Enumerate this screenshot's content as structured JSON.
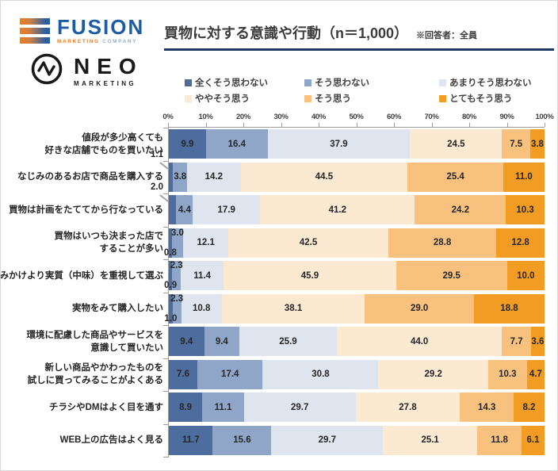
{
  "header": {
    "title": "買物に対する意識や行動（n＝1,000）",
    "note": "※回答者：全員"
  },
  "logos": {
    "fusion": {
      "name": "FUSION",
      "subtitle_1": "MARKETING",
      "subtitle_2": "COMPANY"
    },
    "neo": {
      "name": "NEO",
      "subtitle": "MARKETING"
    }
  },
  "colors": {
    "accent_navy": "#1F3864",
    "fusion_blue": "#1D5BA4",
    "fusion_orange": "#E87E25",
    "axis_gray": "#9C9C9C"
  },
  "chart_data": {
    "type": "bar",
    "stacked": true,
    "orientation": "horizontal",
    "title": "買物に対する意識や行動（n＝1,000）",
    "note": "※回答者：全員",
    "xlim": [
      0,
      100
    ],
    "grid": false,
    "legend_position": "top",
    "x_tick_labels": [
      "0%",
      "10%",
      "20%",
      "30%",
      "40%",
      "50%",
      "60%",
      "70%",
      "80%",
      "90%",
      "100%"
    ],
    "legend": [
      {
        "label": "全くそう思わない",
        "color": "#4D6D9E"
      },
      {
        "label": "そう思わない",
        "color": "#8FA6C8"
      },
      {
        "label": "あまりそう思わない",
        "color": "#DEE5EF"
      },
      {
        "label": "ややそう思う",
        "color": "#FCE9D2"
      },
      {
        "label": "そう思う",
        "color": "#F8C17E"
      },
      {
        "label": "とてもそう思う",
        "color": "#F39C23"
      }
    ],
    "rows": [
      {
        "label": [
          "値段が多少高くても",
          "好きな店舗でものを買いたい"
        ],
        "values": [
          9.9,
          16.4,
          37.9,
          24.5,
          7.5,
          3.8
        ],
        "placements": [
          "in",
          "in",
          "in",
          "in",
          "in",
          "in"
        ]
      },
      {
        "label": [
          "なじみのあるお店で商品を購入する"
        ],
        "values": [
          1.1,
          3.8,
          14.2,
          44.5,
          25.4,
          11.0
        ],
        "placements": [
          "callout",
          "in",
          "in",
          "in",
          "in",
          "in"
        ]
      },
      {
        "label": [
          "買物は計画をたててから行なっている"
        ],
        "values": [
          2.0,
          4.4,
          17.9,
          41.2,
          24.2,
          10.3
        ],
        "placements": [
          "callout",
          "in",
          "in",
          "in",
          "in",
          "in"
        ]
      },
      {
        "label": [
          "買物はいつも決まった店で",
          "することが多い"
        ],
        "values": [
          0.8,
          3.0,
          12.1,
          42.5,
          28.8,
          12.8
        ],
        "placements": [
          "down",
          "up",
          "in",
          "in",
          "in",
          "in"
        ]
      },
      {
        "label": [
          "みかけより実質（中味）を重視して選ぶ"
        ],
        "values": [
          0.9,
          2.3,
          11.4,
          45.9,
          29.5,
          10.0
        ],
        "placements": [
          "down",
          "up",
          "in",
          "in",
          "in",
          "in"
        ]
      },
      {
        "label": [
          "実物をみて購入したい"
        ],
        "values": [
          1.0,
          2.3,
          10.8,
          38.1,
          29.0,
          18.8
        ],
        "placements": [
          "down",
          "up",
          "in",
          "in",
          "in",
          "in"
        ]
      },
      {
        "label": [
          "環境に配慮した商品やサービスを",
          "意識して買いたい"
        ],
        "values": [
          9.4,
          9.4,
          25.9,
          44.0,
          7.7,
          3.6
        ],
        "placements": [
          "in",
          "in",
          "in",
          "in",
          "in",
          "in"
        ]
      },
      {
        "label": [
          "新しい商品やかわったものを",
          "試しに買ってみることがよくある"
        ],
        "values": [
          7.6,
          17.4,
          30.8,
          29.2,
          10.3,
          4.7
        ],
        "placements": [
          "in",
          "in",
          "in",
          "in",
          "in",
          "in"
        ]
      },
      {
        "label": [
          "チラシやDMはよく目を通す"
        ],
        "values": [
          8.9,
          11.1,
          29.7,
          27.8,
          14.3,
          8.2
        ],
        "placements": [
          "in",
          "in",
          "in",
          "in",
          "in",
          "in"
        ]
      },
      {
        "label": [
          "WEB上の広告はよく見る"
        ],
        "values": [
          11.7,
          15.6,
          29.7,
          25.1,
          11.8,
          6.1
        ],
        "placements": [
          "in",
          "in",
          "in",
          "in",
          "in",
          "in"
        ]
      }
    ]
  }
}
